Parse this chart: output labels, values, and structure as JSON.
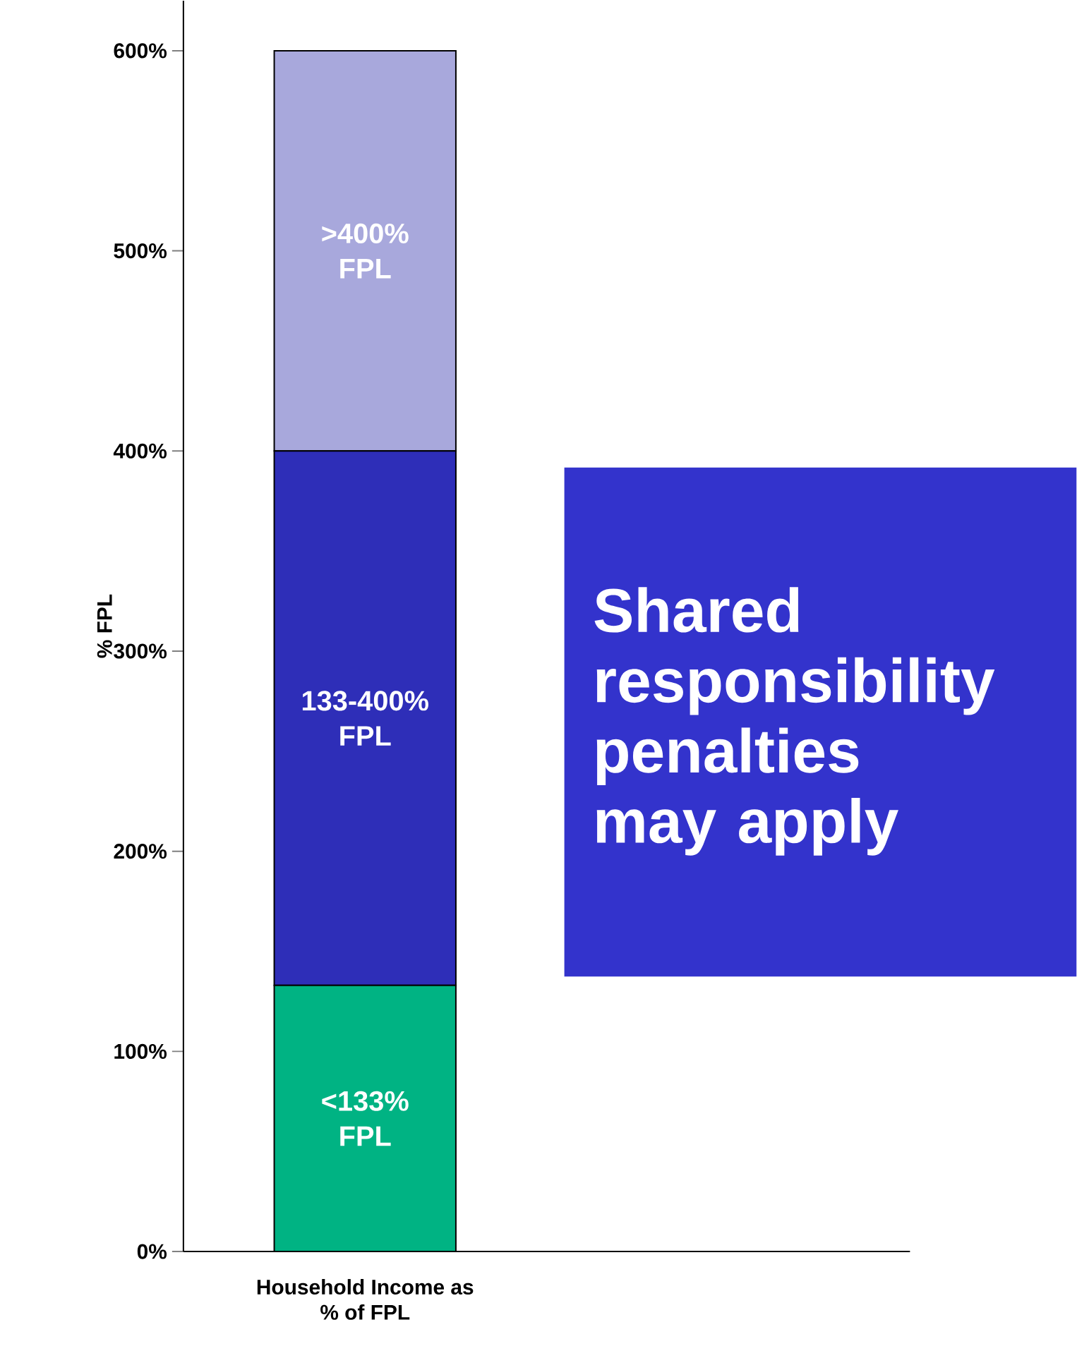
{
  "chart_data": {
    "type": "bar",
    "stacked": true,
    "ylabel": "% FPL",
    "categories": [
      "Household Income as % of FPL",
      null
    ],
    "series": [
      {
        "name": "<133% FPL",
        "color": "#00b383",
        "values": [
          133,
          null
        ]
      },
      {
        "name": "133-400% FPL",
        "color": "#2e2eb8",
        "values": [
          267,
          null
        ]
      },
      {
        "name": ">400% FPL",
        "color": "#a8a8dc",
        "values": [
          200,
          null
        ]
      }
    ],
    "ylim": [
      0,
      625
    ],
    "yticks": [
      {
        "value": 0,
        "label": "0%"
      },
      {
        "value": 100,
        "label": "100%"
      },
      {
        "value": 200,
        "label": "200%"
      },
      {
        "value": 300,
        "label": "300%"
      },
      {
        "value": 400,
        "label": "400%"
      },
      {
        "value": 500,
        "label": "500%"
      },
      {
        "value": 600,
        "label": "600%"
      }
    ],
    "annotations": [
      "Shared responsibility penalties may apply"
    ],
    "legend": false,
    "grid": false
  }
}
